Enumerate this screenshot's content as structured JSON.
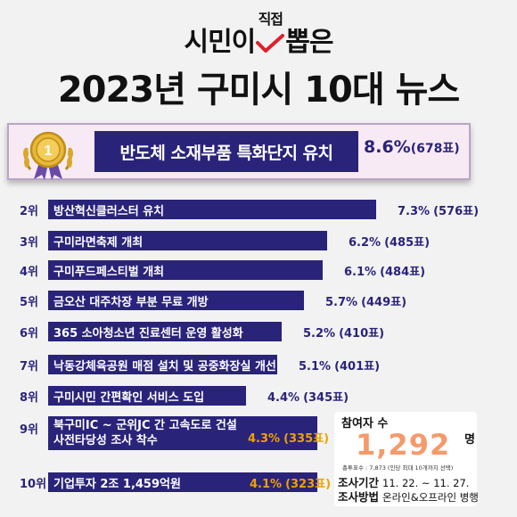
{
  "title": {
    "line1_before": "시민이",
    "line1_check_note": "직접",
    "line1_after": "뽑은",
    "line2": "2023년 구미시 10대 뉴스"
  },
  "chart_data": {
    "type": "bar",
    "categories": [
      "반도체 소재부품 특화단지 유치",
      "방산혁신클러스터 유치",
      "구미라면축제 개최",
      "구미푸드페스티벌 개최",
      "금오산 대주차장 부분 무료 개방",
      "365 소아청소년 진료센터 운영 활성화",
      "낙동강체육공원 매점 설치 및 공중화장실 개선",
      "구미시민 간편확인 서비스 도입",
      "북구미IC ~ 군위JC 간 고속도로 건설 사전타당성 조사 착수",
      "기업투자 2조 1,459억원"
    ],
    "series": [
      {
        "values": [
          8.6,
          7.3,
          6.2,
          6.1,
          5.7,
          5.2,
          5.1,
          4.4,
          4.3,
          4.1
        ]
      },
      {
        "values": [
          678,
          576,
          485,
          484,
          449,
          410,
          401,
          345,
          335,
          323
        ]
      }
    ]
  },
  "rows": [
    {
      "rank": "",
      "label": "반도체 소재부품 특화단지 유치",
      "pct": "8.6%",
      "votes": "(678표)"
    },
    {
      "rank": "2위",
      "label": "방산혁신클러스터 유치",
      "pct": "7.3%",
      "votes": "(576표)"
    },
    {
      "rank": "3위",
      "label": "구미라면축제 개최",
      "pct": "6.2%",
      "votes": "(485표)"
    },
    {
      "rank": "4위",
      "label": "구미푸드페스티벌 개최",
      "pct": "6.1%",
      "votes": "(484표)"
    },
    {
      "rank": "5위",
      "label": "금오산 대주차장 부분 무료 개방",
      "pct": "5.7%",
      "votes": "(449표)"
    },
    {
      "rank": "6위",
      "label": "365 소아청소년 진료센터 운영 활성화",
      "pct": "5.2%",
      "votes": "(410표)"
    },
    {
      "rank": "7위",
      "label": "낙동강체육공원 매점 설치 및 공중화장실 개선",
      "pct": "5.1%",
      "votes": "(401표)"
    },
    {
      "rank": "8위",
      "label": "구미시민 간편확인 서비스 도입",
      "pct": "4.4%",
      "votes": "(345표)"
    },
    {
      "rank": "9위",
      "label": "북구미IC ~ 군위JC 간 고속도로 건설 사전타당성 조사 착수",
      "pct": "4.3%",
      "votes": "(335표)"
    },
    {
      "rank": "10위",
      "label": "기업투자 2조 1,459억원",
      "pct": "4.1%",
      "votes": "(323표)"
    }
  ],
  "participants": {
    "label": "참여자 수",
    "count": "1,292",
    "unit": "명",
    "votes_note": "총투표수 : 7,873 (인당 최대 10개까지 선택)"
  },
  "survey": {
    "period_label": "조사기간",
    "period_value": "11. 22. ~ 11. 27.",
    "method_label": "조사방법",
    "method_value": "온라인&오프라인 병행"
  },
  "colors": {
    "bar": "#2a237a",
    "medal": "#e8b838",
    "count": "#f59a6a",
    "check": "#e0202a"
  }
}
